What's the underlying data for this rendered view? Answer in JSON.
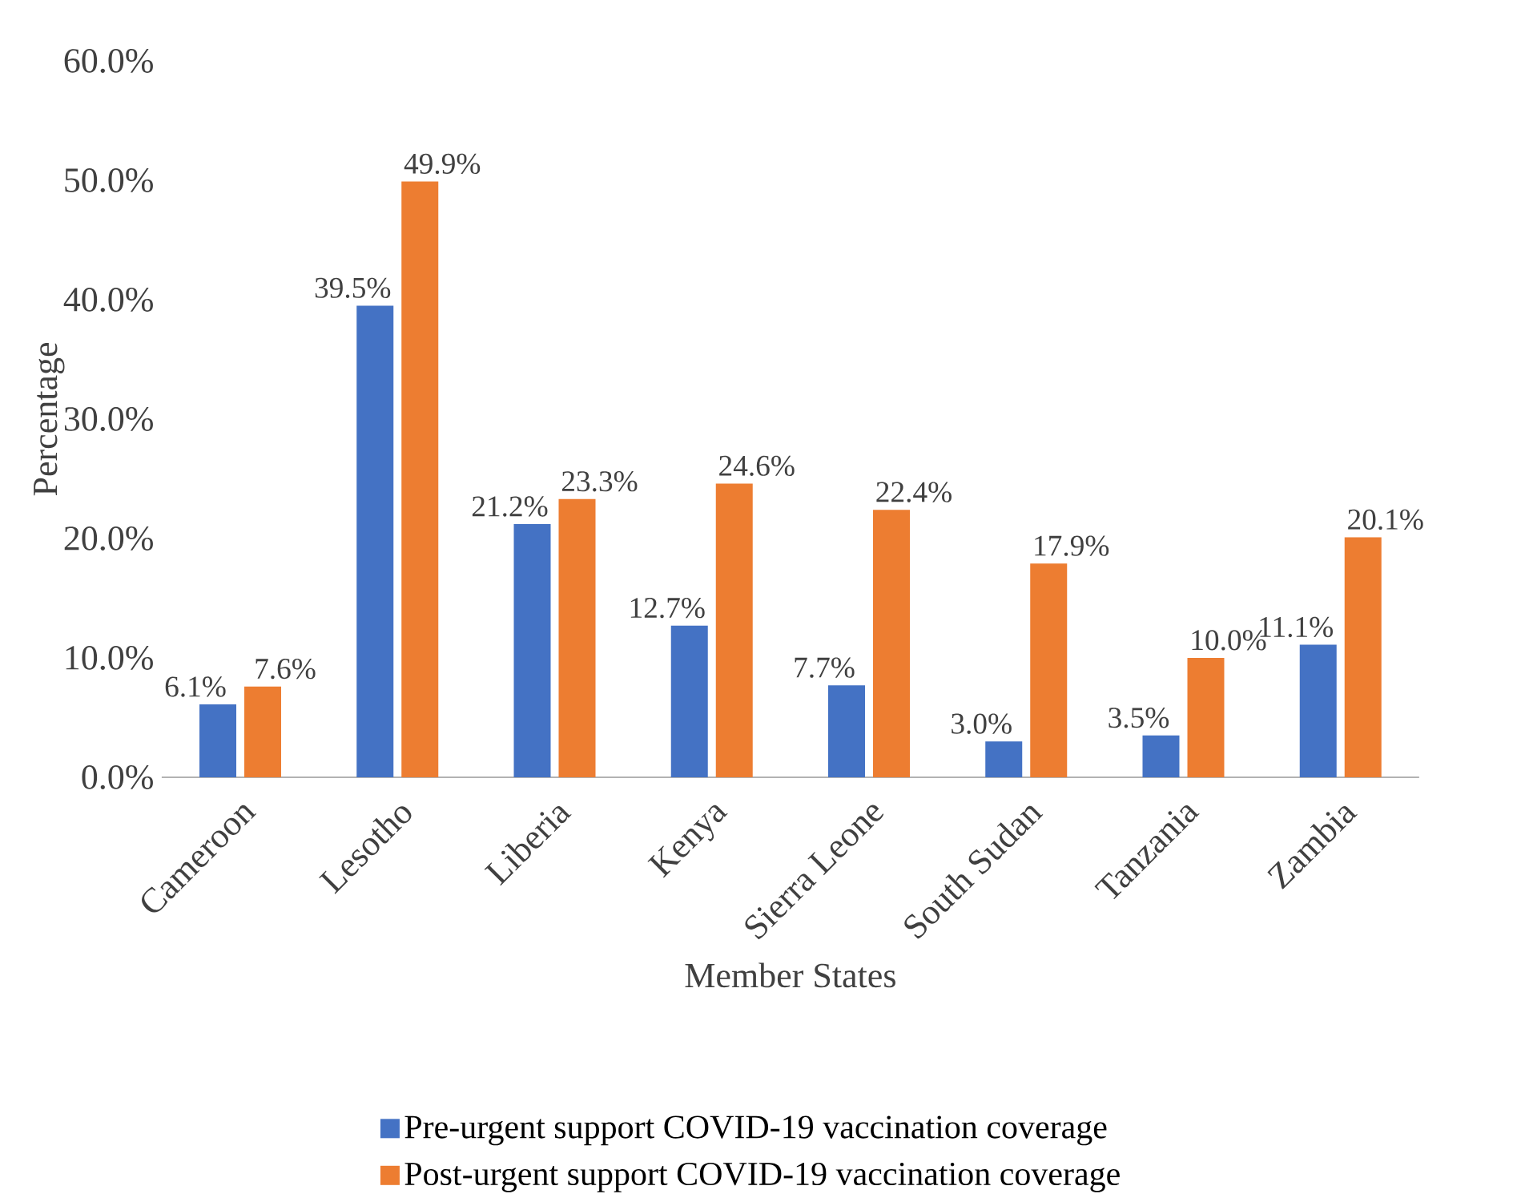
{
  "chart_data": {
    "type": "bar",
    "xlabel": "Member States",
    "ylabel": "Percentage",
    "categories": [
      "Cameroon",
      "Lesotho",
      "Liberia",
      "Kenya",
      "Sierra Leone",
      "South Sudan",
      "Tanzania",
      "Zambia"
    ],
    "series": [
      {
        "name": "Pre-urgent support COVID-19 vaccination coverage",
        "color": "#4472c4",
        "values": [
          6.1,
          39.5,
          21.2,
          12.7,
          7.7,
          3.0,
          3.5,
          11.1
        ],
        "value_labels": [
          "6.1%",
          "39.5%",
          "21.2%",
          "12.7%",
          "7.7%",
          "3.0%",
          "3.5%",
          "11.1%"
        ]
      },
      {
        "name": "Post-urgent support COVID-19 vaccination coverage",
        "color": "#ed7d31",
        "values": [
          7.6,
          49.9,
          23.3,
          24.6,
          22.4,
          17.9,
          10.0,
          20.1
        ],
        "value_labels": [
          "7.6%",
          "49.9%",
          "23.3%",
          "24.6%",
          "22.4%",
          "17.9%",
          "10.0%",
          "20.1%"
        ]
      }
    ],
    "ylim": [
      0,
      60
    ],
    "yticks": [
      {
        "value": 0,
        "label": "0.0%"
      },
      {
        "value": 10,
        "label": "10.0%"
      },
      {
        "value": 20,
        "label": "20.0%"
      },
      {
        "value": 30,
        "label": "30.0%"
      },
      {
        "value": 40,
        "label": "40.0%"
      },
      {
        "value": 50,
        "label": "50.0%"
      },
      {
        "value": 60,
        "label": "60.0%"
      }
    ],
    "legend": "bottom"
  }
}
